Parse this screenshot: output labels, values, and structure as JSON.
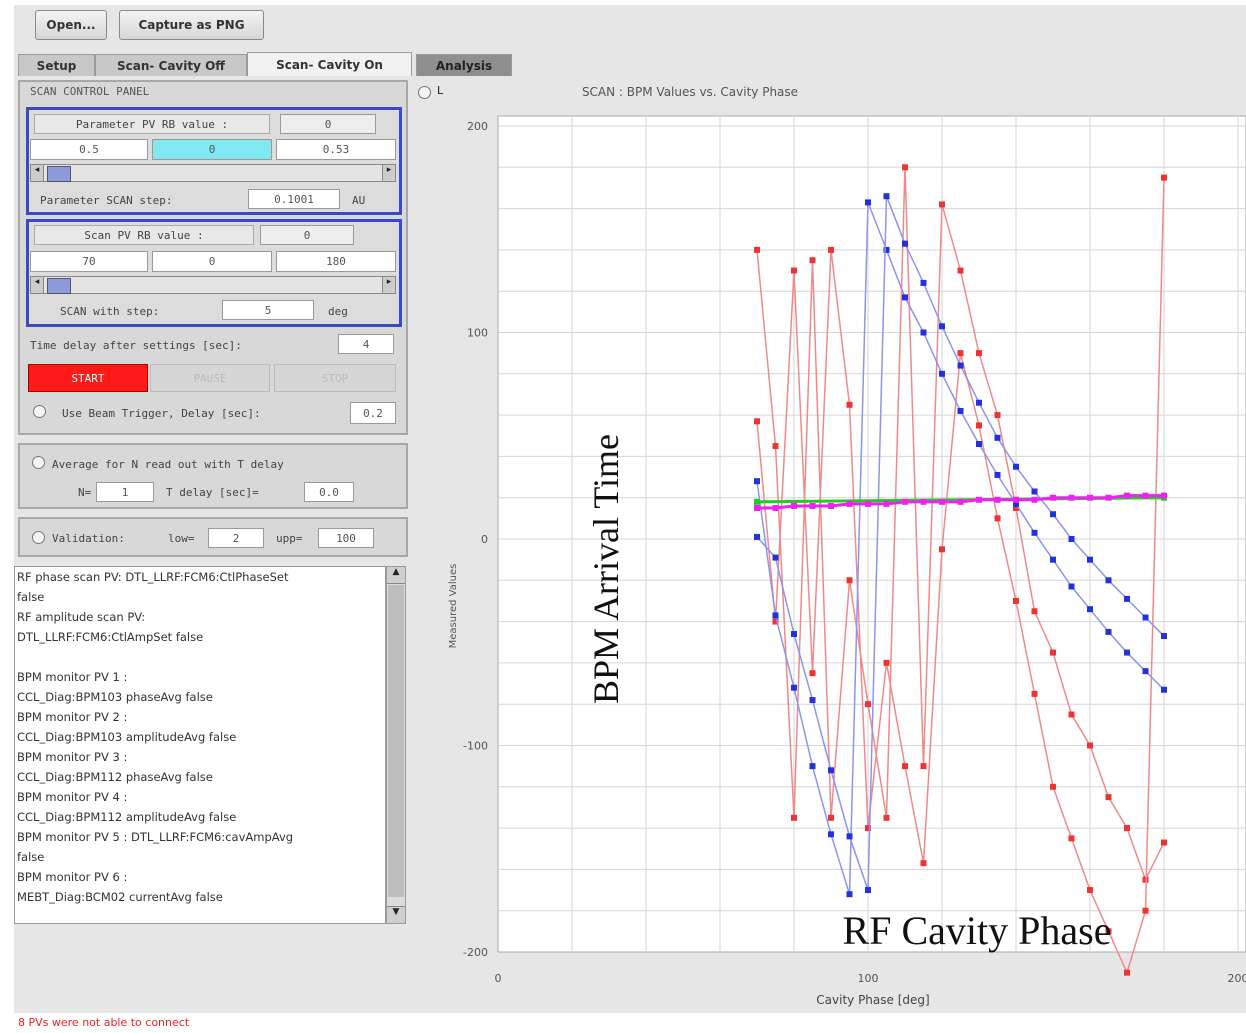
{
  "toolbar": {
    "open_label": "Open...",
    "capture_label": "Capture as PNG"
  },
  "tabs": [
    {
      "label": "Setup",
      "state": "normal"
    },
    {
      "label": "Scan- Cavity Off",
      "state": "normal"
    },
    {
      "label": "Scan- Cavity On",
      "state": "active"
    },
    {
      "label": "Analysis",
      "state": "dark"
    }
  ],
  "control_panel": {
    "title": "SCAN CONTROL PANEL",
    "param": {
      "rb_label": "Parameter PV RB value :",
      "rb_value": "0",
      "min": "0.5",
      "current": "0",
      "max": "0.53",
      "step_label": "Parameter SCAN step:",
      "step_value": "0.1001",
      "step_unit": "AU"
    },
    "scan": {
      "rb_label": "Scan PV RB value :",
      "rb_value": "0",
      "min": "70",
      "current": "0",
      "max": "180",
      "step_label": "SCAN with step:",
      "step_value": "5",
      "step_unit": "deg"
    },
    "time_delay_label": "Time delay after settings [sec]:",
    "time_delay_value": "4",
    "start_label": "START",
    "pause_label": "PAUSE",
    "stop_label": "STOP",
    "beam_trigger_label": "Use Beam Trigger, Delay [sec]:",
    "beam_trigger_value": "0.2",
    "average_label": "Average for N read out with T delay",
    "n_label": "N=",
    "n_value": "1",
    "t_label": "T delay [sec]=",
    "t_value": "0.0",
    "validation_label": "Validation:",
    "low_label": "low=",
    "low_value": "2",
    "upp_label": "upp=",
    "upp_value": "100"
  },
  "log_lines": [
    "RF phase scan PV: DTL_LLRF:FCM6:CtlPhaseSet",
    "false",
    "RF amplitude scan PV:",
    "DTL_LLRF:FCM6:CtlAmpSet  false",
    "",
    "BPM monitor PV 1 :",
    "CCL_Diag:BPM103 phaseAvg  false",
    "BPM monitor PV 2 :",
    "CCL_Diag:BPM103 amplitudeAvg  false",
    "BPM monitor PV 3 :",
    "CCL_Diag:BPM112 phaseAvg  false",
    "BPM monitor PV 4 :",
    "CCL_Diag:BPM112 amplitudeAvg  false",
    "BPM monitor PV 5 : DTL_LLRF:FCM6:cavAmpAvg",
    " false",
    "BPM monitor PV 6 :",
    "MEBT_Diag:BCM02 currentAvg  false"
  ],
  "plot_header": {
    "toggle_label": "L"
  },
  "status_text": "8 PVs were not able to connect",
  "colors": {
    "red_series": "#ee3333",
    "blue_series": "#2233dd",
    "green_series": "#22cc22",
    "magenta_series": "#ee22ee",
    "start_button": "#ff1a1a",
    "panel_border": "#3b49c4"
  },
  "chart_data": {
    "type": "line",
    "title": "SCAN : BPM Values vs. Cavity Phase",
    "xlabel": "Cavity Phase [deg]",
    "ylabel": "Measured Values",
    "overlay_labels": {
      "y": "BPM Arrival Time",
      "x": "RF Cavity Phase"
    },
    "xlim": [
      0,
      200
    ],
    "ylim": [
      -200,
      200
    ],
    "xticks": [
      "0",
      "100",
      "200"
    ],
    "yticks": [
      "200",
      "100",
      "0",
      "-100",
      "-200"
    ],
    "grid": true,
    "series": [
      {
        "color": "red",
        "x": [
          70,
          75,
          80,
          85,
          90,
          95,
          100,
          105,
          110,
          115,
          120,
          125,
          130,
          135,
          140,
          145,
          150,
          155,
          160,
          165,
          170,
          175,
          180
        ],
        "y": [
          140,
          45,
          -135,
          135,
          -135,
          -20,
          -80,
          -135,
          180,
          -110,
          162,
          130,
          90,
          60,
          15,
          -35,
          -55,
          -85,
          -100,
          -125,
          -140,
          -165,
          -147
        ]
      },
      {
        "color": "red",
        "x": [
          70,
          75,
          80,
          85,
          90,
          95,
          100,
          105,
          110,
          115,
          120,
          125,
          130,
          135,
          140,
          145,
          150,
          155,
          160,
          165,
          170,
          175,
          180
        ],
        "y": [
          57,
          -40,
          130,
          -65,
          140,
          65,
          -140,
          -60,
          -110,
          -157,
          -5,
          90,
          55,
          10,
          -30,
          -75,
          -120,
          -145,
          -170,
          -190,
          -210,
          -180,
          175
        ]
      },
      {
        "color": "blue",
        "x": [
          70,
          75,
          80,
          85,
          90,
          95,
          100,
          105,
          110,
          115,
          120,
          125,
          130,
          135,
          140,
          145,
          150,
          155,
          160,
          165,
          170,
          175,
          180
        ],
        "y": [
          28,
          -37,
          -72,
          -110,
          -143,
          -172,
          163,
          140,
          117,
          100,
          80,
          62,
          46,
          31,
          17,
          3,
          -10,
          -23,
          -34,
          -45,
          -55,
          -64,
          -73
        ]
      },
      {
        "color": "blue",
        "x": [
          70,
          75,
          80,
          85,
          90,
          95,
          100,
          105,
          110,
          115,
          120,
          125,
          130,
          135,
          140,
          145,
          150,
          155,
          160,
          165,
          170,
          175,
          180
        ],
        "y": [
          1,
          -9,
          -46,
          -78,
          -112,
          -144,
          -170,
          166,
          143,
          124,
          103,
          84,
          66,
          49,
          35,
          23,
          12,
          0,
          -10,
          -20,
          -29,
          -38,
          -47
        ]
      },
      {
        "color": "green",
        "x": [
          70,
          180
        ],
        "y": [
          18,
          20
        ]
      },
      {
        "color": "magenta",
        "x": [
          70,
          75,
          80,
          85,
          90,
          95,
          100,
          105,
          110,
          115,
          120,
          125,
          130,
          135,
          140,
          145,
          150,
          155,
          160,
          165,
          170,
          175,
          180
        ],
        "y": [
          15,
          15,
          16,
          16,
          16,
          17,
          17,
          17,
          18,
          18,
          18,
          18,
          19,
          19,
          19,
          19,
          20,
          20,
          20,
          20,
          21,
          21,
          21
        ]
      }
    ]
  }
}
